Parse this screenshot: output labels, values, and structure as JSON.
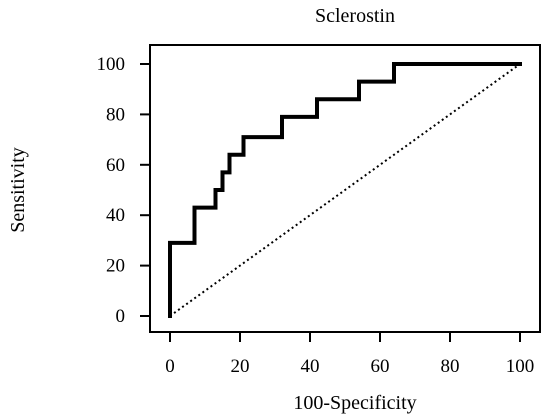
{
  "chart_data": {
    "type": "line",
    "title": "Sclerostin",
    "xlabel": "100-Specificity",
    "ylabel": "Sensitivity",
    "xlim": [
      0,
      100
    ],
    "ylim": [
      0,
      100
    ],
    "xticks": [
      0,
      20,
      40,
      60,
      80,
      100
    ],
    "yticks": [
      0,
      20,
      40,
      60,
      80,
      100
    ],
    "grid": false,
    "legend": "none",
    "colors": {
      "roc": "#000000",
      "reference": "#000000",
      "axis": "#000000"
    },
    "series": [
      {
        "style": "step",
        "x": [
          0,
          0,
          7,
          7,
          13,
          13,
          15,
          15,
          16,
          16,
          17,
          17,
          21,
          21,
          32,
          32,
          42,
          42,
          54,
          54,
          64,
          64,
          100
        ],
        "y": [
          0,
          29,
          29,
          43,
          43,
          50,
          50,
          57,
          57,
          57,
          57,
          64,
          64,
          71,
          71,
          79,
          79,
          86,
          86,
          93,
          93,
          100,
          100
        ]
      },
      {
        "style": "dotted",
        "x": [
          0,
          100
        ],
        "y": [
          0,
          100
        ]
      }
    ]
  }
}
